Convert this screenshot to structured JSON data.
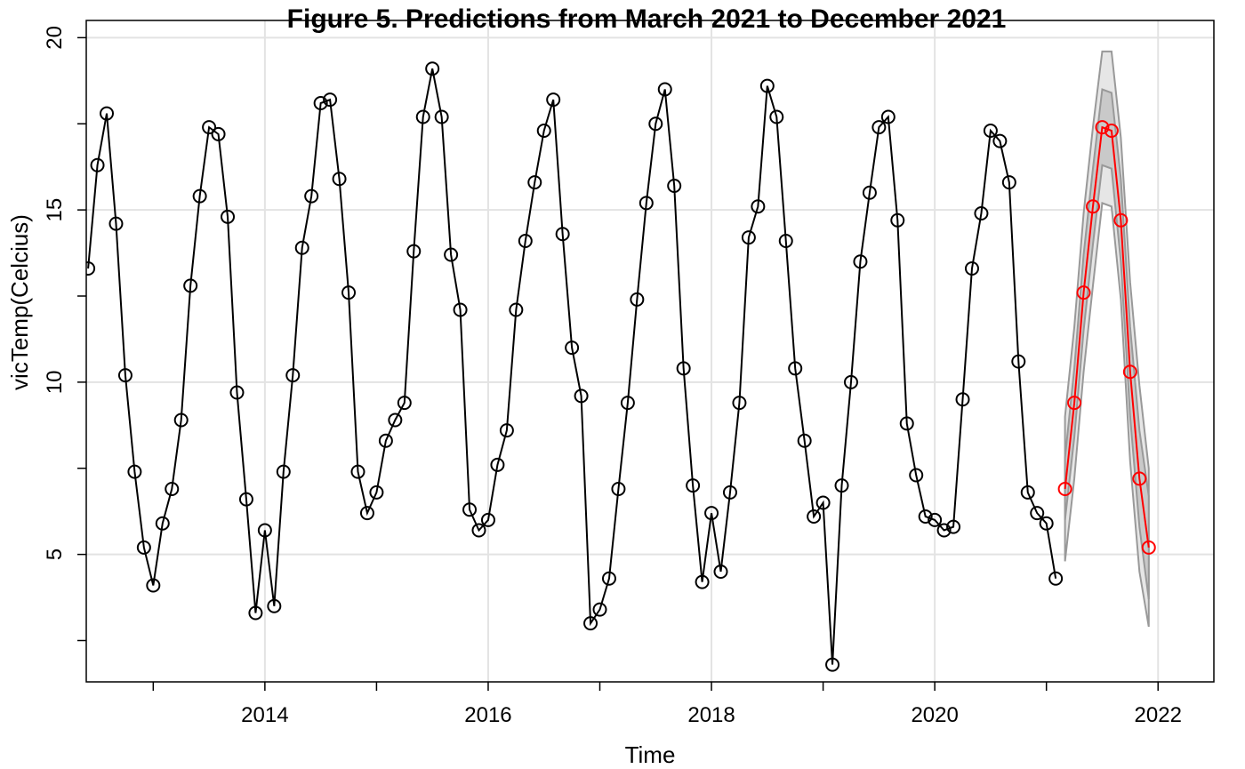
{
  "chart_data": {
    "type": "line",
    "title": "Figure 5. Predictions from March 2021 to December 2021",
    "xlabel": "Time",
    "ylabel": "vicTemp(Celcius)",
    "xlim": [
      2012.4,
      2022.5
    ],
    "ylim": [
      1.3,
      20.5
    ],
    "grid": true,
    "x_ticks": [
      2014,
      2016,
      2018,
      2020,
      2022
    ],
    "x_minor_ticks": [
      2013,
      2015,
      2017,
      2019,
      2021
    ],
    "y_ticks": [
      5,
      10,
      15,
      20
    ],
    "colors": {
      "observed": "#000000",
      "forecast": "#ff0000",
      "band_outer": "#e6e6e6",
      "band_inner": "#c9c9c9",
      "band_edge": "#999999",
      "grid": "#e3e3e3"
    },
    "series": [
      {
        "start": [
          2012,
          6
        ],
        "values": [
          13.3,
          16.3,
          17.8,
          14.6,
          10.2,
          7.4,
          5.2,
          4.1,
          5.9,
          6.9,
          8.9,
          12.8,
          15.4,
          17.4,
          17.2,
          14.8,
          9.7,
          6.6,
          3.3,
          5.7,
          3.5,
          7.4,
          10.2,
          13.9,
          15.4,
          18.1,
          18.2,
          15.9,
          12.6,
          7.4,
          6.2,
          6.8,
          8.3,
          8.9,
          9.4,
          13.8,
          17.7,
          19.1,
          17.7,
          13.7,
          12.1,
          6.3,
          5.7,
          6.0,
          7.6,
          8.6,
          12.1,
          14.1,
          15.8,
          17.3,
          18.2,
          14.3,
          11.0,
          9.6,
          3.0,
          3.4,
          4.3,
          6.9,
          9.4,
          12.4,
          15.2,
          17.5,
          18.5,
          15.7,
          10.4,
          7.0,
          4.2,
          6.2,
          4.5,
          6.8,
          9.4,
          14.2,
          15.1,
          18.6,
          17.7,
          14.1,
          10.4,
          8.3,
          6.1,
          6.5,
          1.8,
          7.0,
          10.0,
          13.5,
          15.5,
          17.4,
          17.7,
          14.7,
          8.8,
          7.3,
          6.1,
          6.0,
          5.7,
          5.8,
          9.5,
          13.3,
          14.9,
          17.3,
          17.0,
          15.8,
          10.6,
          6.8,
          6.2,
          5.9,
          4.3
        ]
      },
      {
        "start": [
          2021,
          3
        ],
        "values": [
          6.9,
          9.4,
          12.6,
          15.1,
          17.4,
          17.3,
          14.7,
          10.3,
          7.2,
          5.2
        ],
        "lower_80": [
          6.0,
          8.4,
          11.5,
          14.0,
          16.3,
          16.2,
          13.5,
          9.0,
          5.8,
          3.7
        ],
        "upper_80": [
          7.8,
          10.4,
          13.7,
          16.2,
          18.5,
          18.4,
          15.9,
          11.6,
          8.6,
          6.7
        ],
        "lower_95": [
          4.8,
          7.2,
          10.3,
          12.8,
          15.2,
          15.1,
          12.4,
          7.7,
          4.5,
          2.9
        ],
        "upper_95": [
          9.0,
          11.6,
          14.9,
          17.4,
          19.6,
          19.6,
          17.1,
          12.9,
          9.9,
          7.5
        ]
      }
    ]
  }
}
